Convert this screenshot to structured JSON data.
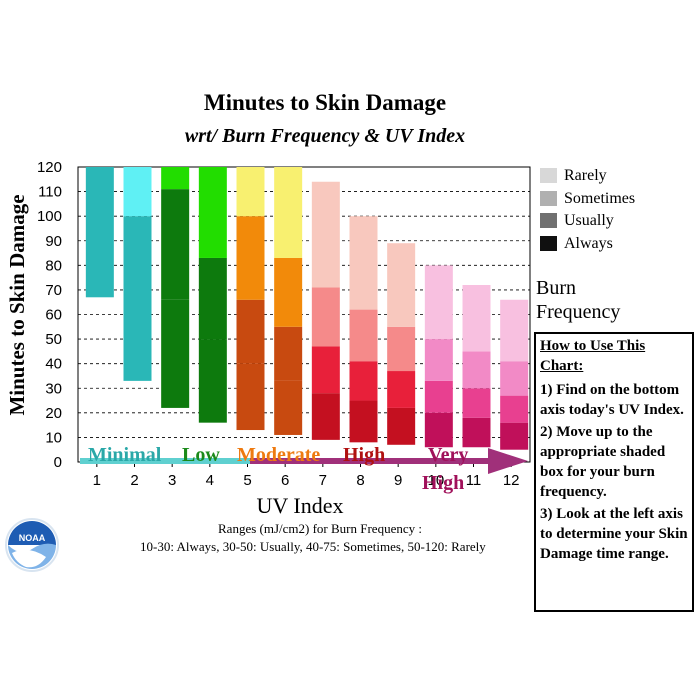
{
  "chart_data": {
    "type": "bar",
    "title": "Minutes to Skin Damage",
    "subtitle": "wrt/ Burn Frequency & UV Index",
    "xlabel": "UV Index",
    "ylabel": "Minutes to Skin Damage",
    "ylim": [
      0,
      120
    ],
    "yticks": [
      0,
      10,
      20,
      30,
      40,
      50,
      60,
      70,
      80,
      90,
      100,
      110,
      120
    ],
    "categories": [
      "1",
      "2",
      "3",
      "4",
      "5",
      "6",
      "7",
      "8",
      "9",
      "10",
      "11",
      "12"
    ],
    "bars": [
      {
        "uv": "1",
        "always": null,
        "usually": null,
        "sometimes": 67,
        "rarely": 120
      },
      {
        "uv": "2",
        "always": null,
        "usually": null,
        "sometimes": 33,
        "rarely": 100,
        "top": 120
      },
      {
        "uv": "3",
        "always": 22,
        "usually": 66,
        "sometimes": 111,
        "rarely": 120
      },
      {
        "uv": "4",
        "always": 16,
        "usually": 50,
        "sometimes": 83,
        "rarely": 120
      },
      {
        "uv": "5",
        "always": 13,
        "usually": 40,
        "sometimes": 66,
        "rarely": 100,
        "top": 120
      },
      {
        "uv": "6",
        "always": 11,
        "usually": 33,
        "sometimes": 55,
        "rarely": 83,
        "top": 120
      },
      {
        "uv": "7",
        "always": 9,
        "usually": 28,
        "sometimes": 47,
        "rarely": 71,
        "top": 114
      },
      {
        "uv": "8",
        "always": 8,
        "usually": 25,
        "sometimes": 41,
        "rarely": 62,
        "top": 100
      },
      {
        "uv": "9",
        "always": 7,
        "usually": 22,
        "sometimes": 37,
        "rarely": 55,
        "top": 89
      },
      {
        "uv": "10",
        "always": 6,
        "usually": 20,
        "sometimes": 33,
        "rarely": 50,
        "top": 80
      },
      {
        "uv": "11",
        "always": 6,
        "usually": 18,
        "sometimes": 30,
        "rarely": 45,
        "top": 72
      },
      {
        "uv": "12",
        "always": 5,
        "usually": 16,
        "sometimes": 27,
        "rarely": 41,
        "top": 66
      }
    ],
    "bar_colors": [
      [
        "#2ab7b7",
        "#2ab7b7",
        "#2ab7b7",
        "#2ab7b7"
      ],
      [
        "#2ab7b7",
        "#2ab7b7",
        "#2ab7b7",
        "#5ff0f4"
      ],
      [
        "#0d7a0d",
        "#0d7a0d",
        "#22dd00",
        "#a6f57e"
      ],
      [
        "#0d7a0d",
        "#0d7a0d",
        "#22dd00",
        "#b4f58e"
      ],
      [
        "#c84a10",
        "#c84a10",
        "#f28a0a",
        "#f5d000"
      ],
      [
        "#c84a10",
        "#c84a10",
        "#f28a0a",
        "#f5d000"
      ],
      [
        "#c41020",
        "#e8203a",
        "#f58a8a",
        "#f8c8be"
      ],
      [
        "#c41020",
        "#e8203a",
        "#f58a8a",
        "#f8c8be"
      ],
      [
        "#c41020",
        "#e8203a",
        "#f58a8a",
        "#f8c8be"
      ],
      [
        "#c0105a",
        "#e84090",
        "#f28ac6",
        "#f8c0e0"
      ],
      [
        "#c0105a",
        "#e84090",
        "#f28ac6",
        "#f8c0e0"
      ],
      [
        "#c0105a",
        "#e84090",
        "#f28ac6",
        "#f8c0e0"
      ]
    ],
    "top_colors": [
      "#5ff0f4",
      "#5ff0f4",
      "#a6f57e",
      "#b4f58e",
      "#f8f070",
      "#f8f070",
      "#f8c8be",
      "#f8c8be",
      "#f8c8be",
      "#f8c0e0",
      "#f8c0e0",
      "#f8c0e0"
    ],
    "categories_band": [
      {
        "label": "Minimal",
        "color": "#2aa8a8"
      },
      {
        "label": "Low",
        "color": "#1a8a1a"
      },
      {
        "label": "Moderate",
        "color": "#ee7a10"
      },
      {
        "label": "High",
        "color": "#b01010"
      },
      {
        "label": "Very High",
        "color": "#a0105a"
      }
    ],
    "legend": [
      {
        "label": "Rarely",
        "color": "#d8d8d8"
      },
      {
        "label": "Sometimes",
        "color": "#b0b0b0"
      },
      {
        "label": "Usually",
        "color": "#707070"
      },
      {
        "label": "Always",
        "color": "#101010"
      }
    ],
    "legend_title": [
      "Burn",
      "Frequency"
    ],
    "grid": true
  },
  "howto": {
    "title": "How to Use This Chart:",
    "steps": [
      "1) Find on the bottom axis today's UV Index.",
      "2) Move up to the appropriate shaded box for your burn frequency.",
      "3) Look at the left axis to determine your Skin Damage time range."
    ]
  },
  "footnote": {
    "line1": "Ranges (mJ/cm2) for Burn Frequency :",
    "line2": "10-30: Always,  30-50: Usually, 40-75: Sometimes, 50-120: Rarely"
  },
  "logo": {
    "text": "NOAA",
    "color": "#1e5cb3"
  }
}
